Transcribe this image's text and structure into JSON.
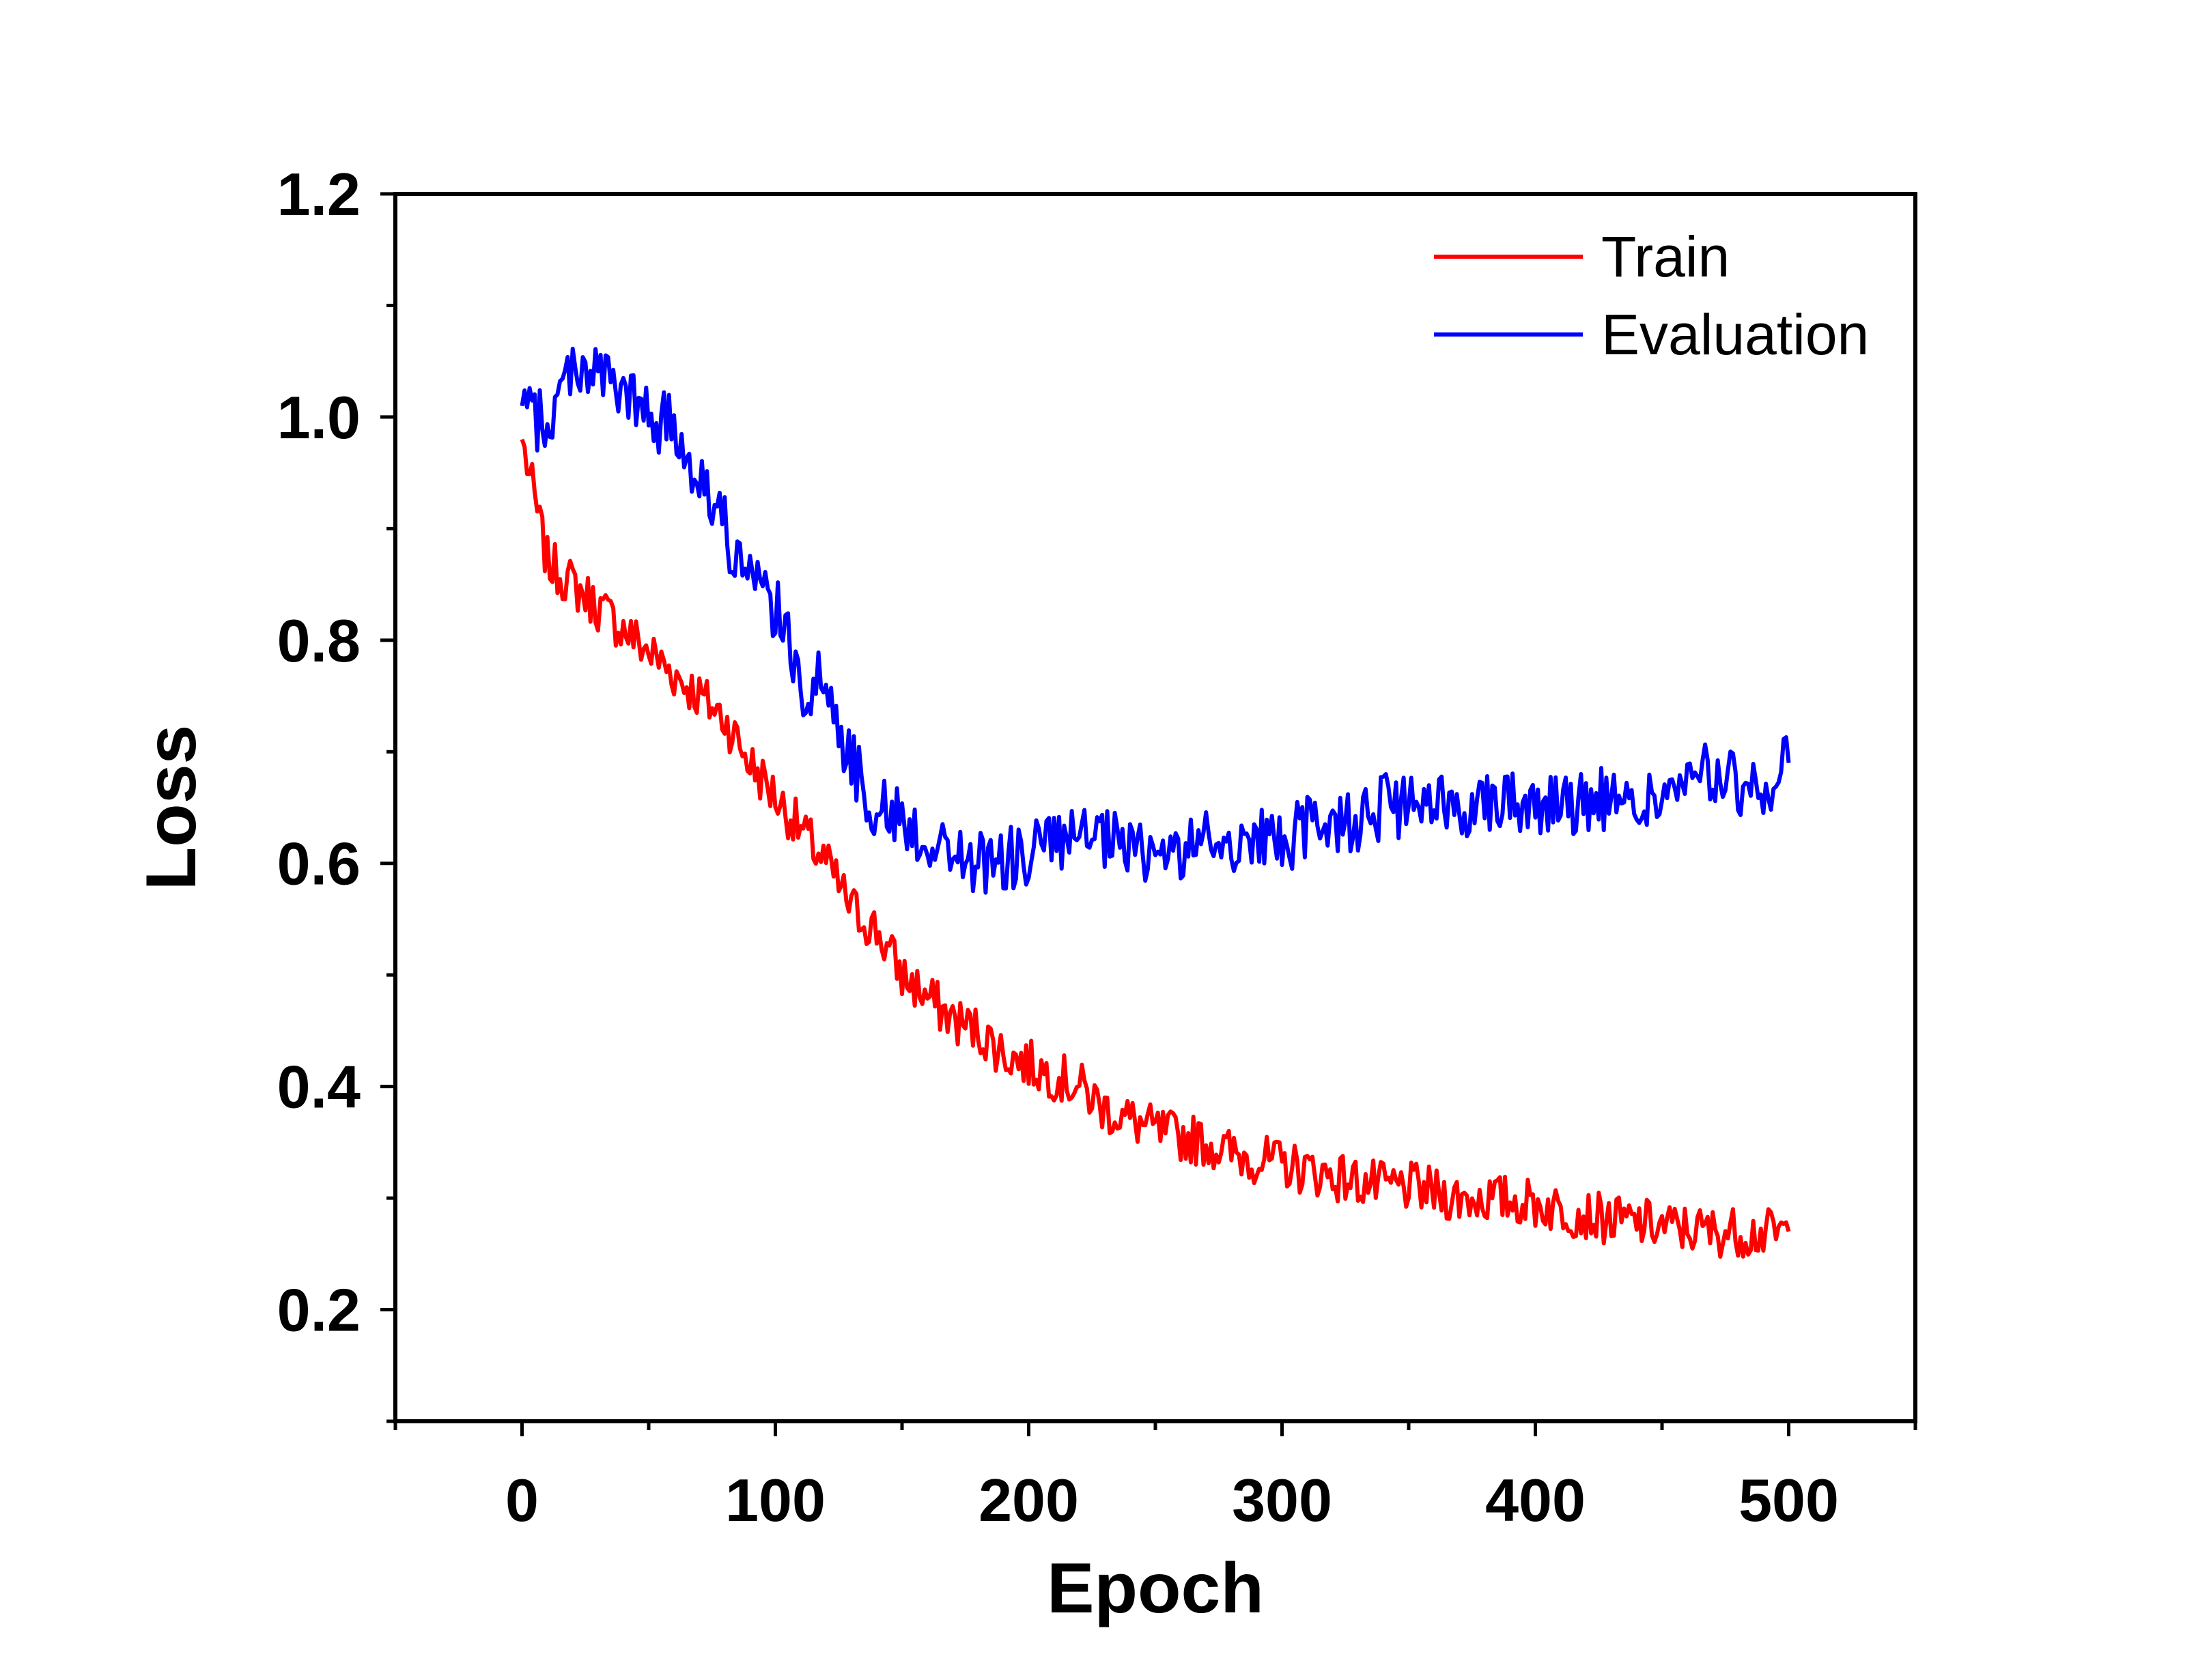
{
  "chart_data": {
    "type": "line",
    "title": "",
    "xlabel": "Epoch",
    "ylabel": "Loss",
    "xlim": [
      -50,
      550
    ],
    "ylim": [
      0.1,
      1.2
    ],
    "xticks": [
      0,
      100,
      200,
      300,
      400,
      500
    ],
    "xtick_labels": [
      "0",
      "100",
      "200",
      "300",
      "400",
      "500"
    ],
    "yticks": [
      0.2,
      0.4,
      0.6,
      0.8,
      1.0,
      1.2
    ],
    "ytick_labels": [
      "0.2",
      "0.4",
      "0.6",
      "0.8",
      "1.0",
      "1.2"
    ],
    "grid": false,
    "legend_position": "top-right",
    "series": [
      {
        "name": "Train",
        "color": "#ff0000",
        "x": [
          0,
          10,
          20,
          30,
          40,
          50,
          60,
          70,
          80,
          90,
          100,
          110,
          120,
          130,
          140,
          150,
          160,
          170,
          180,
          190,
          200,
          210,
          220,
          230,
          240,
          250,
          260,
          270,
          280,
          290,
          300,
          310,
          320,
          330,
          340,
          350,
          360,
          370,
          380,
          390,
          400,
          410,
          420,
          430,
          440,
          450,
          460,
          470,
          480,
          490,
          500
        ],
        "y": [
          0.98,
          0.87,
          0.85,
          0.83,
          0.81,
          0.79,
          0.77,
          0.75,
          0.73,
          0.69,
          0.66,
          0.63,
          0.6,
          0.56,
          0.54,
          0.5,
          0.48,
          0.46,
          0.45,
          0.43,
          0.42,
          0.41,
          0.4,
          0.38,
          0.37,
          0.36,
          0.355,
          0.35,
          0.34,
          0.335,
          0.33,
          0.325,
          0.32,
          0.315,
          0.31,
          0.31,
          0.305,
          0.3,
          0.3,
          0.298,
          0.295,
          0.29,
          0.285,
          0.28,
          0.278,
          0.275,
          0.272,
          0.27,
          0.27,
          0.268,
          0.27
        ]
      },
      {
        "name": "Evaluation",
        "color": "#0000ff",
        "x": [
          0,
          10,
          20,
          30,
          40,
          50,
          60,
          70,
          80,
          90,
          100,
          110,
          120,
          130,
          140,
          150,
          160,
          170,
          180,
          190,
          200,
          210,
          220,
          230,
          240,
          250,
          260,
          270,
          280,
          290,
          300,
          310,
          320,
          330,
          340,
          350,
          360,
          370,
          380,
          390,
          400,
          410,
          420,
          430,
          440,
          450,
          460,
          470,
          480,
          490,
          500
        ],
        "y": [
          1.01,
          0.99,
          1.05,
          1.04,
          1.02,
          1.0,
          0.99,
          0.95,
          0.9,
          0.85,
          0.83,
          0.76,
          0.76,
          0.69,
          0.65,
          0.64,
          0.62,
          0.61,
          0.6,
          0.6,
          0.61,
          0.62,
          0.62,
          0.62,
          0.61,
          0.61,
          0.61,
          0.62,
          0.62,
          0.62,
          0.62,
          0.63,
          0.64,
          0.64,
          0.65,
          0.65,
          0.65,
          0.65,
          0.66,
          0.66,
          0.65,
          0.66,
          0.65,
          0.66,
          0.65,
          0.66,
          0.67,
          0.68,
          0.67,
          0.66,
          0.69
        ]
      }
    ]
  }
}
